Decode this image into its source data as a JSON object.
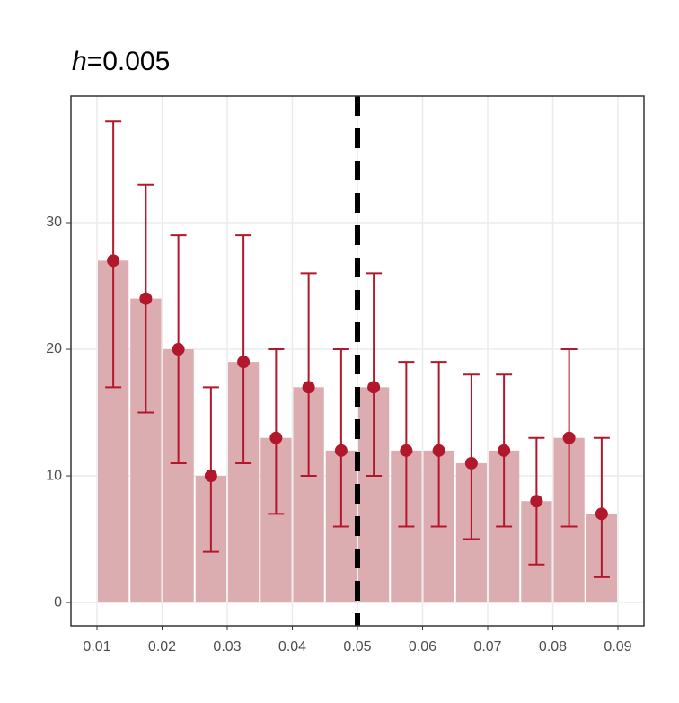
{
  "chart_data": {
    "type": "histogram",
    "title_symbol": "h",
    "title_text": "=0.005",
    "bins": [
      0.01,
      0.015,
      0.02,
      0.025,
      0.03,
      0.035,
      0.04,
      0.045,
      0.05,
      0.055,
      0.06,
      0.065,
      0.07,
      0.075,
      0.08,
      0.085,
      0.09
    ],
    "values": [
      27,
      24,
      20,
      10,
      19,
      13,
      17,
      12,
      17,
      12,
      12,
      11,
      12,
      8,
      13,
      7
    ],
    "lower": [
      17,
      15,
      11,
      4,
      11,
      7,
      10,
      6,
      10,
      6,
      6,
      5,
      6,
      3,
      6,
      2
    ],
    "upper": [
      38,
      33,
      29,
      17,
      29,
      20,
      26,
      20,
      26,
      19,
      19,
      18,
      18,
      13,
      20,
      13
    ],
    "bar_color": "#dcadb0",
    "point_color": "#b2182b",
    "vline": 0.05,
    "xlim": [
      0.006,
      0.094
    ],
    "ylim": [
      -1.84,
      40
    ],
    "xticks": [
      0.01,
      0.02,
      0.03,
      0.04,
      0.05,
      0.06,
      0.07,
      0.08,
      0.09
    ],
    "yticks": [
      0,
      10,
      20,
      30
    ],
    "grid": true
  }
}
